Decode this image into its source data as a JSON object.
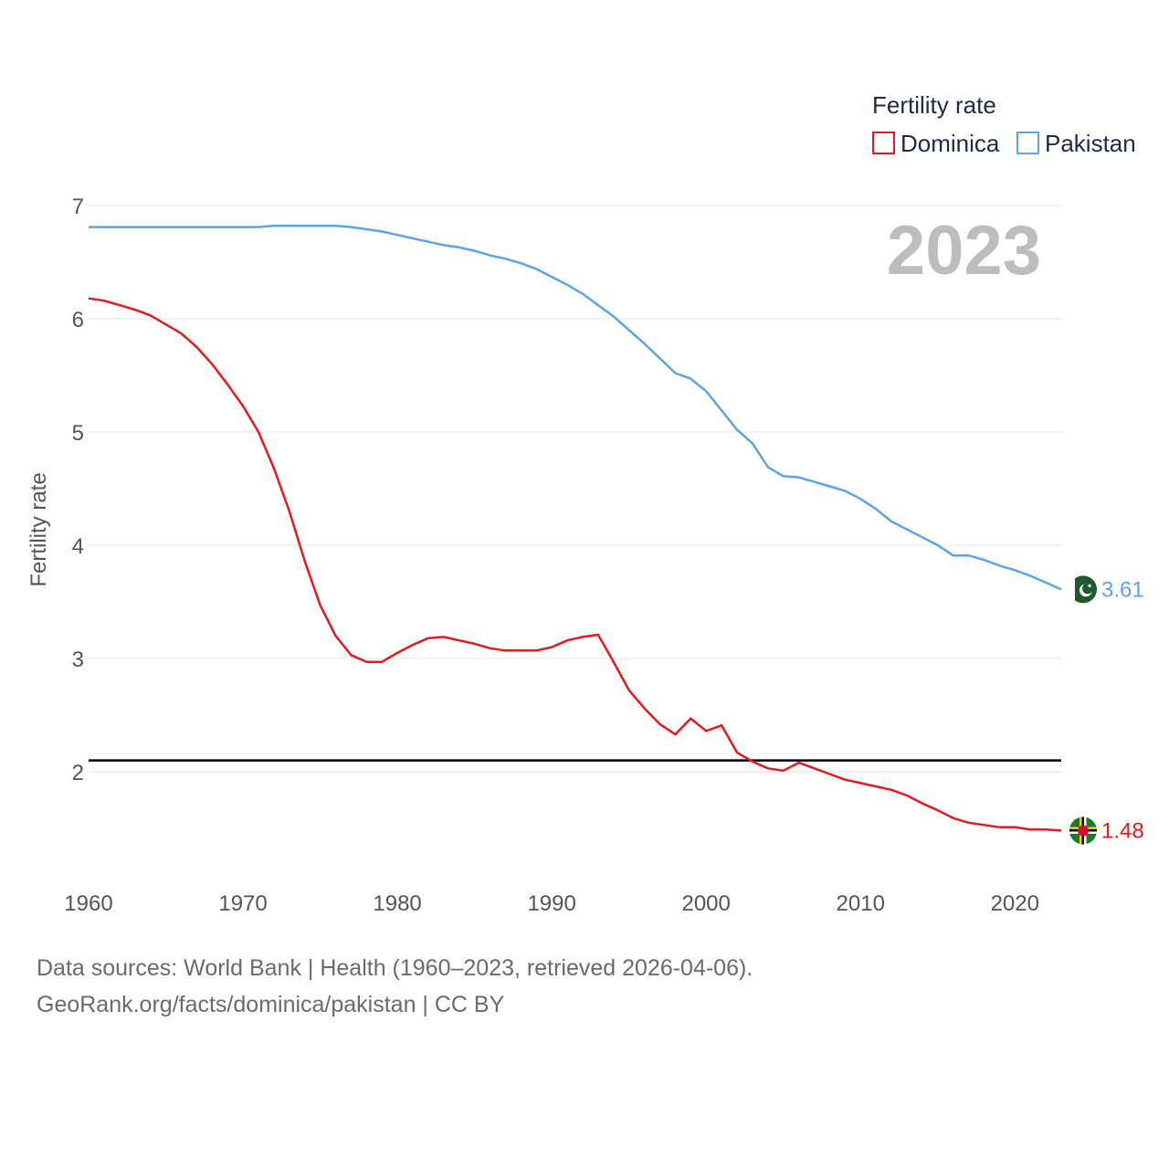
{
  "colors": {
    "dominica": "#e8191c",
    "pakistan": "#5ba4e6",
    "reference_line": "#000000",
    "grid": "#e6e6e6"
  },
  "legend": {
    "title": "Fertility rate",
    "items": [
      "Dominica",
      "Pakistan"
    ]
  },
  "year_label": "2023",
  "end_labels": {
    "pakistan": "3.61",
    "dominica": "1.48"
  },
  "flags": {
    "pakistan": "pakistan-flag-icon",
    "dominica": "dominica-flag-icon"
  },
  "source": {
    "line1": "Data sources: World Bank | Health (1960–2023, retrieved 2026-04-06).",
    "line2": "GeoRank.org/facts/dominica/pakistan | CC BY"
  },
  "chart_data": {
    "type": "line",
    "title": "",
    "xlabel": "",
    "ylabel": "Fertility rate",
    "xlim": [
      1960,
      2023
    ],
    "ylim": [
      1.05,
      7
    ],
    "x_ticks": [
      1960,
      1970,
      1980,
      1990,
      2000,
      2010,
      2020
    ],
    "y_ticks": [
      2,
      3,
      4,
      5,
      6,
      7
    ],
    "grid": true,
    "legend_position": "top-right",
    "reference_line": 2.1,
    "x": [
      1960,
      1961,
      1962,
      1963,
      1964,
      1965,
      1966,
      1967,
      1968,
      1969,
      1970,
      1971,
      1972,
      1973,
      1974,
      1975,
      1976,
      1977,
      1978,
      1979,
      1980,
      1981,
      1982,
      1983,
      1984,
      1985,
      1986,
      1987,
      1988,
      1989,
      1990,
      1991,
      1992,
      1993,
      1994,
      1995,
      1996,
      1997,
      1998,
      1999,
      2000,
      2001,
      2002,
      2003,
      2004,
      2005,
      2006,
      2007,
      2008,
      2009,
      2010,
      2011,
      2012,
      2013,
      2014,
      2015,
      2016,
      2017,
      2018,
      2019,
      2020,
      2021,
      2022,
      2023
    ],
    "series": [
      {
        "name": "Dominica",
        "values": [
          6.18,
          6.16,
          6.12,
          6.08,
          6.03,
          5.95,
          5.87,
          5.75,
          5.6,
          5.42,
          5.23,
          5.0,
          4.68,
          4.3,
          3.86,
          3.47,
          3.2,
          3.03,
          2.97,
          2.97,
          3.05,
          3.12,
          3.18,
          3.19,
          3.16,
          3.13,
          3.09,
          3.07,
          3.07,
          3.07,
          3.1,
          3.16,
          3.19,
          3.21,
          2.97,
          2.72,
          2.56,
          2.42,
          2.33,
          2.47,
          2.36,
          2.41,
          2.17,
          2.09,
          2.03,
          2.01,
          2.08,
          2.03,
          1.98,
          1.93,
          1.9,
          1.87,
          1.84,
          1.79,
          1.72,
          1.66,
          1.59,
          1.55,
          1.53,
          1.51,
          1.51,
          1.49,
          1.49,
          1.48
        ]
      },
      {
        "name": "Pakistan",
        "values": [
          6.81,
          6.81,
          6.81,
          6.81,
          6.81,
          6.81,
          6.81,
          6.81,
          6.81,
          6.81,
          6.81,
          6.81,
          6.82,
          6.82,
          6.82,
          6.82,
          6.82,
          6.81,
          6.79,
          6.77,
          6.74,
          6.71,
          6.68,
          6.65,
          6.63,
          6.6,
          6.56,
          6.53,
          6.49,
          6.44,
          6.37,
          6.3,
          6.22,
          6.12,
          6.02,
          5.9,
          5.78,
          5.65,
          5.52,
          5.47,
          5.36,
          5.19,
          5.02,
          4.9,
          4.69,
          4.61,
          4.6,
          4.56,
          4.52,
          4.48,
          4.41,
          4.32,
          4.21,
          4.14,
          4.07,
          4.0,
          3.91,
          3.91,
          3.87,
          3.82,
          3.78,
          3.73,
          3.67,
          3.61
        ]
      }
    ]
  }
}
